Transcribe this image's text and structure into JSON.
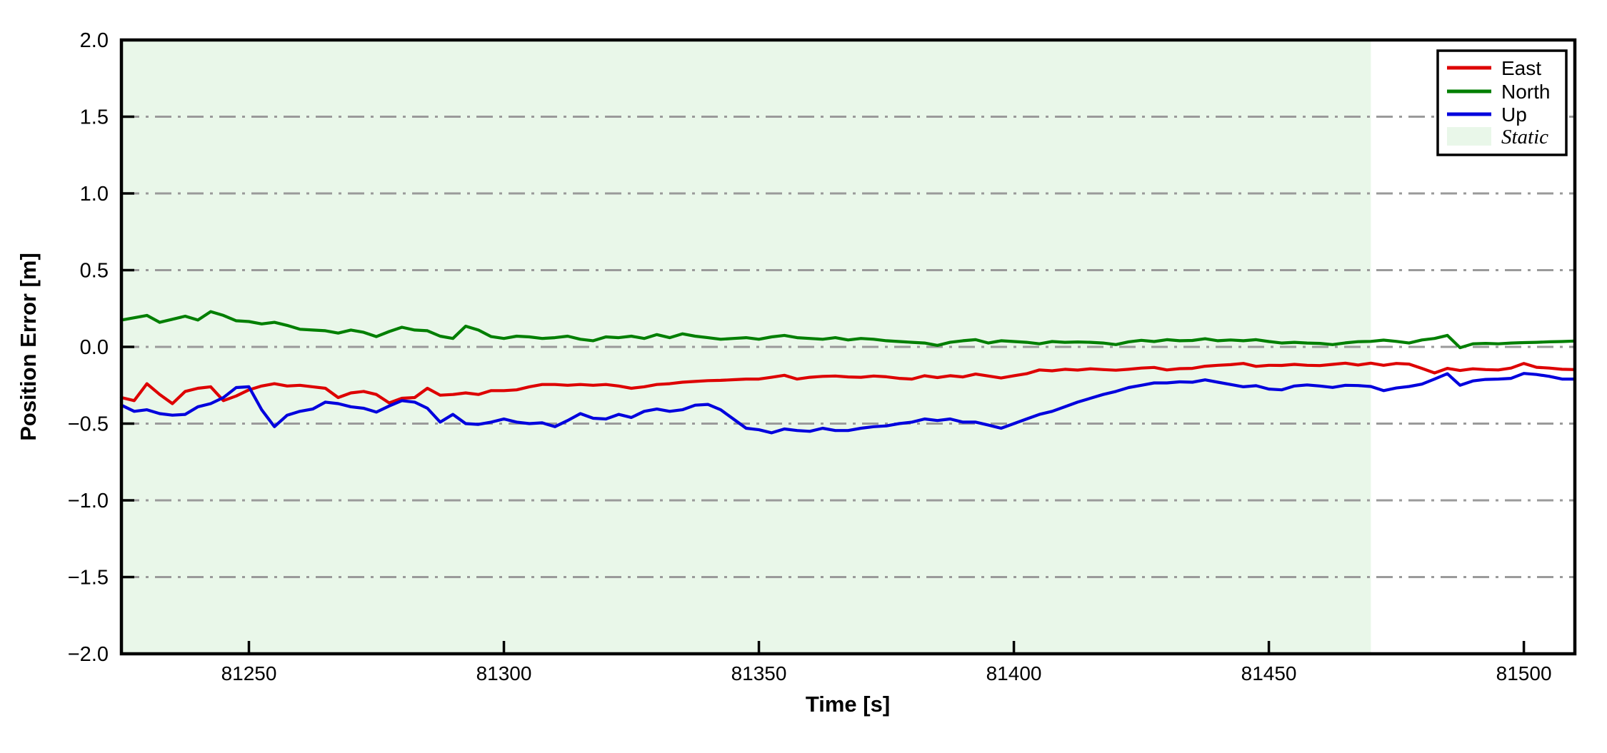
{
  "figure": {
    "background": "#ffffff",
    "plot_background": "#ffffff"
  },
  "chart_data": {
    "type": "line",
    "title": "",
    "xlabel": "Time [s]",
    "ylabel": "Position Error [m]",
    "xlim": [
      81225,
      81510
    ],
    "ylim": [
      -2.0,
      2.0
    ],
    "x_ticks": [
      81250,
      81300,
      81350,
      81400,
      81450,
      81500
    ],
    "y_ticks": [
      -2.0,
      -1.5,
      -1.0,
      -0.5,
      0.0,
      0.5,
      1.0,
      1.5,
      2.0
    ],
    "grid": {
      "on": true,
      "y_values": [
        -1.5,
        -1.0,
        -0.5,
        0.0,
        0.5,
        1.0,
        1.5
      ],
      "style": "dash-dot",
      "color": "#9a9a9a"
    },
    "legend": {
      "position": "top-right",
      "entries": [
        "East",
        "North",
        "Up",
        "Static"
      ]
    },
    "regions": [
      {
        "name": "Static",
        "x_start": 81225,
        "x_end": 81470,
        "color": "#e9f7e9"
      }
    ],
    "x": [
      81225,
      81227.5,
      81230,
      81232.5,
      81235,
      81237.5,
      81240,
      81242.5,
      81245,
      81247.5,
      81250,
      81252.5,
      81255,
      81257.5,
      81260,
      81262.5,
      81265,
      81267.5,
      81270,
      81272.5,
      81275,
      81277.5,
      81280,
      81282.5,
      81285,
      81287.5,
      81290,
      81292.5,
      81295,
      81297.5,
      81300,
      81302.5,
      81305,
      81307.5,
      81310,
      81312.5,
      81315,
      81317.5,
      81320,
      81322.5,
      81325,
      81327.5,
      81330,
      81332.5,
      81335,
      81337.5,
      81340,
      81342.5,
      81345,
      81347.5,
      81350,
      81352.5,
      81355,
      81357.5,
      81360,
      81362.5,
      81365,
      81367.5,
      81370,
      81372.5,
      81375,
      81377.5,
      81380,
      81382.5,
      81385,
      81387.5,
      81390,
      81392.5,
      81395,
      81397.5,
      81400,
      81402.5,
      81405,
      81407.5,
      81410,
      81412.5,
      81415,
      81417.5,
      81420,
      81422.5,
      81425,
      81427.5,
      81430,
      81432.5,
      81435,
      81437.5,
      81440,
      81442.5,
      81445,
      81447.5,
      81450,
      81452.5,
      81455,
      81457.5,
      81460,
      81462.5,
      81465,
      81467.5,
      81470,
      81472.5,
      81475,
      81477.5,
      81480,
      81482.5,
      81485,
      81487.5,
      81490,
      81492.5,
      81495,
      81497.5,
      81500,
      81502.5,
      81505,
      81507.5,
      81510
    ],
    "series": [
      {
        "name": "East",
        "color": "#dd0000",
        "values": [
          -0.33,
          -0.35,
          -0.24,
          -0.31,
          -0.37,
          -0.29,
          -0.27,
          -0.26,
          -0.35,
          -0.32,
          -0.28,
          -0.255,
          -0.24,
          -0.255,
          -0.25,
          -0.26,
          -0.27,
          -0.33,
          -0.3,
          -0.29,
          -0.31,
          -0.365,
          -0.335,
          -0.33,
          -0.27,
          -0.315,
          -0.31,
          -0.3,
          -0.31,
          -0.285,
          -0.285,
          -0.28,
          -0.26,
          -0.245,
          -0.245,
          -0.25,
          -0.245,
          -0.25,
          -0.245,
          -0.255,
          -0.27,
          -0.26,
          -0.245,
          -0.24,
          -0.23,
          -0.225,
          -0.22,
          -0.218,
          -0.214,
          -0.21,
          -0.21,
          -0.198,
          -0.185,
          -0.21,
          -0.198,
          -0.192,
          -0.19,
          -0.196,
          -0.198,
          -0.19,
          -0.195,
          -0.205,
          -0.21,
          -0.188,
          -0.2,
          -0.188,
          -0.196,
          -0.177,
          -0.19,
          -0.203,
          -0.188,
          -0.175,
          -0.15,
          -0.156,
          -0.146,
          -0.151,
          -0.143,
          -0.148,
          -0.152,
          -0.146,
          -0.138,
          -0.134,
          -0.15,
          -0.142,
          -0.14,
          -0.126,
          -0.12,
          -0.116,
          -0.108,
          -0.127,
          -0.12,
          -0.121,
          -0.114,
          -0.12,
          -0.122,
          -0.114,
          -0.106,
          -0.118,
          -0.106,
          -0.12,
          -0.108,
          -0.112,
          -0.14,
          -0.17,
          -0.14,
          -0.154,
          -0.143,
          -0.148,
          -0.15,
          -0.138,
          -0.108,
          -0.133,
          -0.138,
          -0.146,
          -0.148
        ]
      },
      {
        "name": "North",
        "color": "#007f00",
        "values": [
          0.175,
          0.19,
          0.205,
          0.16,
          0.18,
          0.2,
          0.175,
          0.23,
          0.205,
          0.17,
          0.165,
          0.15,
          0.16,
          0.14,
          0.115,
          0.11,
          0.105,
          0.09,
          0.11,
          0.095,
          0.067,
          0.1,
          0.128,
          0.11,
          0.105,
          0.07,
          0.055,
          0.135,
          0.11,
          0.067,
          0.055,
          0.07,
          0.065,
          0.055,
          0.06,
          0.07,
          0.05,
          0.04,
          0.065,
          0.06,
          0.07,
          0.055,
          0.08,
          0.06,
          0.085,
          0.07,
          0.06,
          0.05,
          0.055,
          0.06,
          0.05,
          0.065,
          0.075,
          0.06,
          0.055,
          0.05,
          0.06,
          0.045,
          0.055,
          0.05,
          0.04,
          0.035,
          0.03,
          0.025,
          0.01,
          0.03,
          0.04,
          0.047,
          0.025,
          0.04,
          0.035,
          0.03,
          0.02,
          0.035,
          0.03,
          0.032,
          0.03,
          0.025,
          0.015,
          0.033,
          0.043,
          0.035,
          0.047,
          0.04,
          0.042,
          0.053,
          0.04,
          0.045,
          0.04,
          0.047,
          0.035,
          0.025,
          0.03,
          0.025,
          0.023,
          0.015,
          0.026,
          0.034,
          0.036,
          0.044,
          0.036,
          0.025,
          0.045,
          0.055,
          0.075,
          -0.005,
          0.02,
          0.023,
          0.02,
          0.025,
          0.028,
          0.03,
          0.033,
          0.035,
          0.038
        ]
      },
      {
        "name": "Up",
        "color": "#0000dd",
        "values": [
          -0.38,
          -0.42,
          -0.41,
          -0.435,
          -0.445,
          -0.44,
          -0.39,
          -0.37,
          -0.33,
          -0.265,
          -0.26,
          -0.41,
          -0.52,
          -0.445,
          -0.42,
          -0.405,
          -0.36,
          -0.37,
          -0.39,
          -0.4,
          -0.425,
          -0.385,
          -0.35,
          -0.36,
          -0.4,
          -0.49,
          -0.44,
          -0.5,
          -0.505,
          -0.49,
          -0.47,
          -0.49,
          -0.5,
          -0.495,
          -0.52,
          -0.48,
          -0.435,
          -0.465,
          -0.47,
          -0.44,
          -0.46,
          -0.42,
          -0.405,
          -0.42,
          -0.41,
          -0.38,
          -0.375,
          -0.41,
          -0.47,
          -0.53,
          -0.54,
          -0.56,
          -0.535,
          -0.545,
          -0.55,
          -0.53,
          -0.545,
          -0.545,
          -0.53,
          -0.52,
          -0.515,
          -0.5,
          -0.49,
          -0.47,
          -0.48,
          -0.47,
          -0.49,
          -0.49,
          -0.51,
          -0.53,
          -0.5,
          -0.47,
          -0.44,
          -0.42,
          -0.39,
          -0.36,
          -0.335,
          -0.31,
          -0.29,
          -0.265,
          -0.25,
          -0.235,
          -0.235,
          -0.228,
          -0.23,
          -0.215,
          -0.23,
          -0.245,
          -0.26,
          -0.253,
          -0.275,
          -0.28,
          -0.255,
          -0.248,
          -0.255,
          -0.264,
          -0.25,
          -0.252,
          -0.258,
          -0.285,
          -0.268,
          -0.258,
          -0.243,
          -0.21,
          -0.175,
          -0.25,
          -0.222,
          -0.212,
          -0.21,
          -0.205,
          -0.173,
          -0.18,
          -0.192,
          -0.21,
          -0.21
        ]
      }
    ]
  }
}
